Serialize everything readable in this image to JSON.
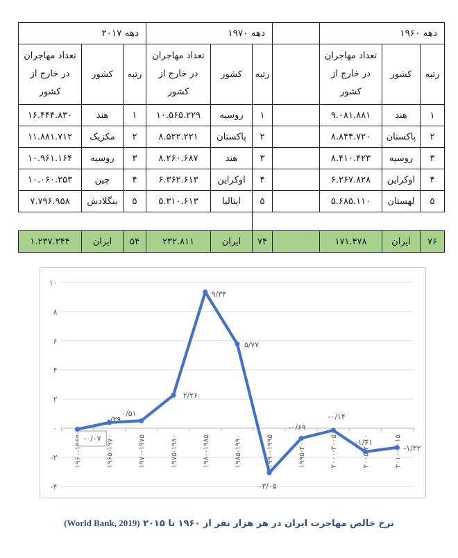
{
  "table": {
    "highlight_color": "#A9D18E",
    "decades": [
      {
        "label": "دهه ۱۹۶۰"
      },
      {
        "label": "دهه ۱۹۷۰"
      },
      {
        "label": "دهه ۲۰۱۷"
      }
    ],
    "column_headers": {
      "rank": "رتبه",
      "country": "کشور",
      "migrants": "تعداد مهاجران در خارج از کشور"
    },
    "rows": [
      {
        "g1960": {
          "rank": "۱",
          "country": "هند",
          "migrants": "۹.۰۸۱.۸۸۱"
        },
        "g1970": {
          "rank": "۱",
          "country": "روسیه",
          "migrants": "۱۰.۵۶۵.۲۲۹"
        },
        "g2017": {
          "rank": "۱",
          "country": "هند",
          "migrants": "۱۶.۴۴۴.۸۳۰"
        }
      },
      {
        "g1960": {
          "rank": "۲",
          "country": "پاکستان",
          "migrants": "۸.۸۴۴.۷۲۰"
        },
        "g1970": {
          "rank": "۲",
          "country": "پاکستان",
          "migrants": "۸.۵۲۲.۲۲۱"
        },
        "g2017": {
          "rank": "۲",
          "country": "مکزیک",
          "migrants": "۱۱.۸۸۱.۷۱۲"
        }
      },
      {
        "g1960": {
          "rank": "۳",
          "country": "روسیه",
          "migrants": "۸.۴۱۰.۴۲۳"
        },
        "g1970": {
          "rank": "۳",
          "country": "هند",
          "migrants": "۸.۲۶۰.۶۸۷"
        },
        "g2017": {
          "rank": "۳",
          "country": "روسیه",
          "migrants": "۱۰.۹۶۱.۱۶۴"
        }
      },
      {
        "g1960": {
          "rank": "۴",
          "country": "اوکراین",
          "migrants": "۶.۲۶۷.۸۲۸"
        },
        "g1970": {
          "rank": "۴",
          "country": "اوکراین",
          "migrants": "۶.۳۶۲.۶۱۳"
        },
        "g2017": {
          "rank": "۴",
          "country": "چین",
          "migrants": "۱۰.۰۶۰.۲۵۳"
        }
      },
      {
        "g1960": {
          "rank": "۵",
          "country": "لهستان",
          "migrants": "۵.۶۸۵.۱۱۰"
        },
        "g1970": {
          "rank": "۵",
          "country": "ایتالیا",
          "migrants": "۵.۳۱۰.۶۱۳"
        },
        "g2017": {
          "rank": "۵",
          "country": "بنگلادش",
          "migrants": "۷.۷۹۶.۹۵۸"
        }
      }
    ],
    "iran_row": {
      "g1960": {
        "rank": "۷۶",
        "country": "ایران",
        "migrants": "۱۷۱.۴۷۸"
      },
      "g1970": {
        "rank": "۷۴",
        "country": "ایران",
        "migrants": "۲۳۲.۸۱۱"
      },
      "g2017": {
        "rank": "۵۴",
        "country": "ایران",
        "migrants": "۱.۲۳۷.۳۴۴"
      }
    }
  },
  "chart_data": {
    "type": "line",
    "title": "",
    "categories": [
      "۱۹۶۰-۱۹۶۵",
      "۱۹۶۵-۱۹۷۰",
      "۱۹۷۰-۱۹۷۵",
      "۱۹۷۵-۱۹۸۰",
      "۱۹۸۰-۱۹۸۵",
      "۱۹۸۵-۱۹۹۰",
      "۱۹۹۰-۱۹۹۵",
      "۱۹۹۵-۲۰۰۰",
      "۲۰۰۰-۲۰۰۵",
      "۲۰۰۵-۲۰۱۰",
      "۲۰۱۰-۲۰۱۵"
    ],
    "values": [
      -0.07,
      0.39,
      0.51,
      2.26,
      9.34,
      5.77,
      -3.05,
      -0.69,
      -0.14,
      -1.61,
      -1.32
    ],
    "point_labels": [
      "-۰/۰۷",
      "۰/۳۹",
      "۰/۵۱",
      "۲/۲۶",
      "۹/۳۴",
      "۵/۷۷",
      "-۳/۰۵",
      "-۰/۶۹",
      "-۰/۱۴",
      "-۱/۶۱",
      "-۱/۳۲"
    ],
    "xlabel": "",
    "ylabel": "",
    "ylim": [
      -4,
      10
    ],
    "y_ticks": [
      10,
      8,
      6,
      4,
      2,
      0,
      -2,
      -4
    ],
    "y_tick_labels": [
      "۱۰",
      "۸",
      "۶",
      "۴",
      "۲",
      "۰",
      "-۲",
      "-۴"
    ],
    "line_color": "#4472C4",
    "grid": true,
    "legend": "none"
  },
  "caption": {
    "text": "نرخ خالص مهاجرت ایران در هر هزار نفر از ۱۹۶۰ تا ۲۰۱۵",
    "source": "(World Bank, 2019)"
  }
}
